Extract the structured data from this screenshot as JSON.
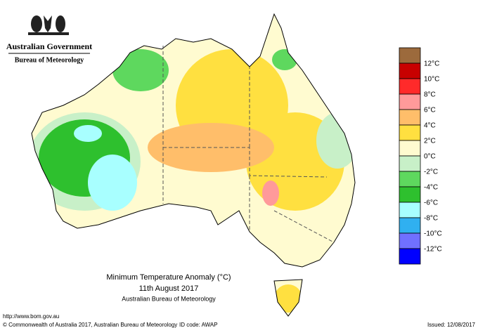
{
  "header": {
    "government": "Australian Government",
    "bureau": "Bureau of Meteorology"
  },
  "legend": {
    "colors": [
      "#9c6a3c",
      "#c80000",
      "#ff2a2a",
      "#ff9a9a",
      "#ffbe6a",
      "#ffe040",
      "#fffbd0",
      "#c8f0c8",
      "#5ed85e",
      "#2ec02e",
      "#a8ffff",
      "#30b0f0",
      "#7070ff",
      "#0000ff"
    ],
    "labels": [
      "12°C",
      "10°C",
      "8°C",
      "6°C",
      "4°C",
      "2°C",
      "0°C",
      "-2°C",
      "-4°C",
      "-6°C",
      "-8°C",
      "-10°C",
      "-12°C"
    ]
  },
  "caption": {
    "title": "Minimum Temperature Anomaly (°C)",
    "date": "11th August 2017",
    "source": "Australian Bureau of Meteorology"
  },
  "footer": {
    "url": "http://www.bom.gov.au",
    "copyright": "© Commonwealth of Australia 2017, Australian Bureau of Meteorology",
    "id": "ID code: AWAP",
    "issued": "Issued: 12/08/2017"
  }
}
